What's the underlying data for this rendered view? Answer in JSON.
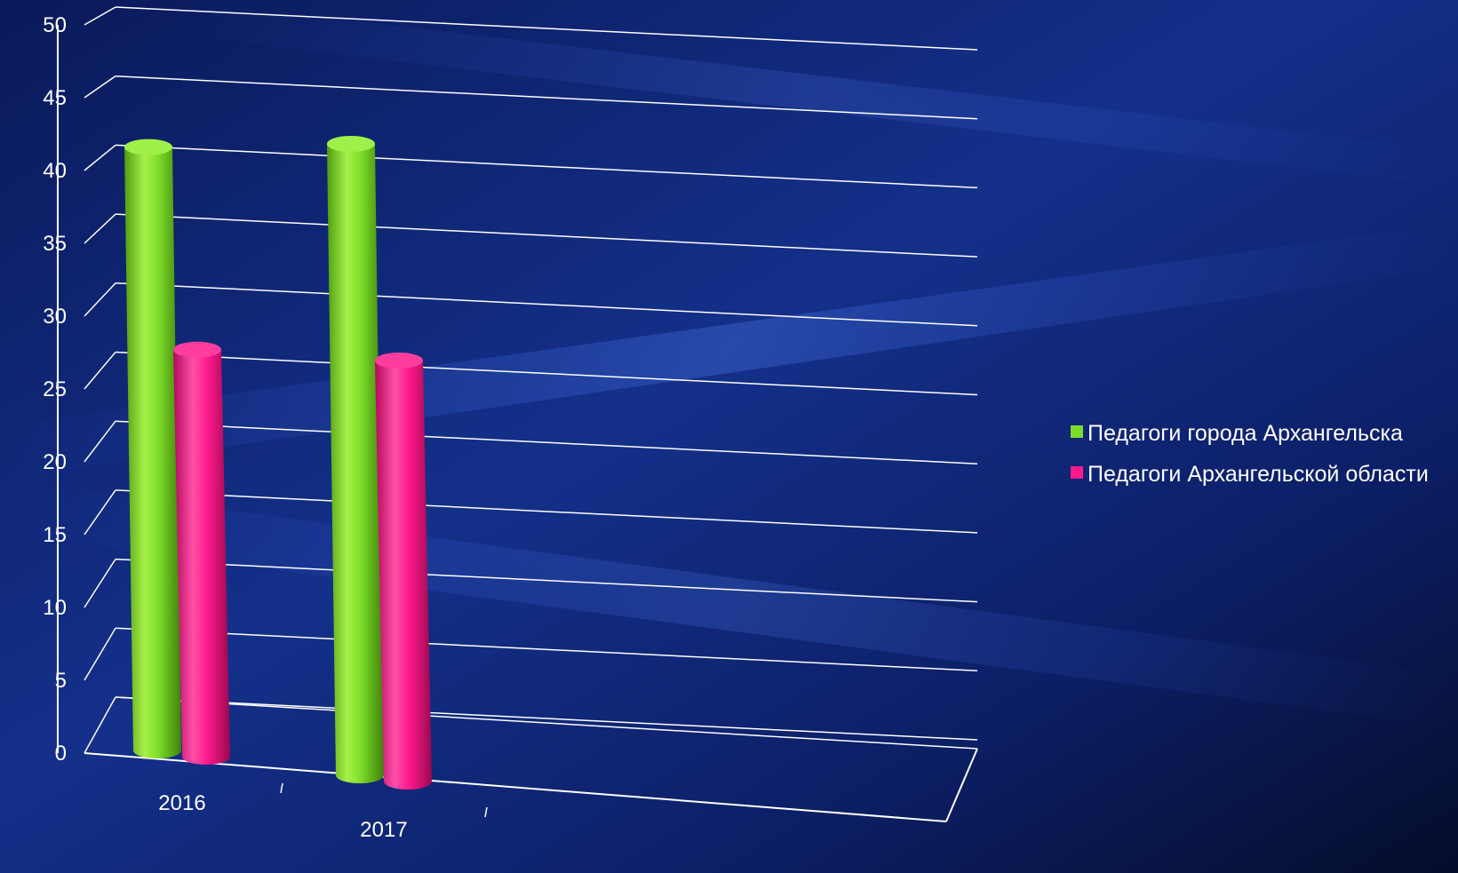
{
  "chart_data": {
    "type": "bar",
    "categories": [
      "2016",
      "2017"
    ],
    "series": [
      {
        "name": "Педагоги города Архангельска",
        "values": [
          43,
          45
        ]
      },
      {
        "name": "Педагоги Архангельской области",
        "values": [
          29,
          30
        ]
      }
    ],
    "yticks": [
      "0",
      "5",
      "10",
      "15",
      "20",
      "25",
      "30",
      "35",
      "40",
      "45",
      "50"
    ],
    "ylim": [
      0,
      50
    ],
    "grid": true,
    "legend_position": "right",
    "colors": {
      "series": [
        "#7ddc2a",
        "#ff1a8c"
      ],
      "grid": "#ffffff",
      "background": "#07123a"
    }
  }
}
